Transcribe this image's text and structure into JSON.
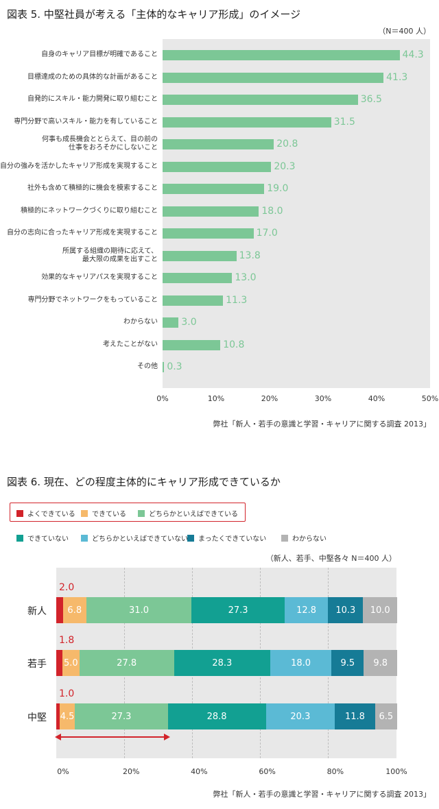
{
  "chart1": {
    "title": "図表 5. 中堅社員が考える「主体的なキャリア形成」のイメージ",
    "n_note": "（N＝400 人）",
    "source": "弊社「新人・若手の意識と学習・キャリアに関する調査 2013」",
    "x_ticks": [
      "0%",
      "10%",
      "20%",
      "30%",
      "40%",
      "50%"
    ]
  },
  "chart2": {
    "title": "図表 6. 現在、どの程度主体的にキャリア形成できているか",
    "n_note": "（新人、若手、中堅各々 N＝400 人）",
    "source": "弊社「新人・若手の意識と学習・キャリアに関する調査 2013」",
    "x_ticks": [
      "0%",
      "20%",
      "40%",
      "60%",
      "80%",
      "100%"
    ],
    "legend_row1": [
      "よくできている",
      "できている",
      "どちらかといえばできている"
    ],
    "legend_row2": [
      "できていない",
      "どちらかといえばできていない",
      "まったくできていない",
      "わからない"
    ]
  },
  "chart_data": [
    {
      "type": "bar",
      "orientation": "horizontal",
      "title": "図表 5. 中堅社員が考える「主体的なキャリア形成」のイメージ",
      "categories": [
        "自身のキャリア目標が明確であること",
        "目標達成のための具体的な計画があること",
        "自発的にスキル・能力開発に取り組むこと",
        "専門分野で高いスキル・能力を有していること",
        "何事も成長機会ととらえて、目の前の\n仕事をおろそかにしないこと",
        "自分の強みを活かしたキャリア形成を実現すること",
        "社外も含めて積極的に機会を模索すること",
        "積極的にネットワークづくりに取り組むこと",
        "自分の志向に合ったキャリア形成を実現すること",
        "所属する組織の期待に応えて、\n最大限の成果を出すこと",
        "効果的なキャリアパスを実現すること",
        "専門分野でネットワークをもっていること",
        "わからない",
        "考えたことがない",
        "その他"
      ],
      "values": [
        44.3,
        41.3,
        36.5,
        31.5,
        20.8,
        20.3,
        19.0,
        18.0,
        17.0,
        13.8,
        13.0,
        11.3,
        3.0,
        10.8,
        0.3
      ],
      "value_labels": [
        "44.3",
        "41.3",
        "36.5",
        "31.5",
        "20.8",
        "20.3",
        "19.0",
        "18.0",
        "17.0",
        "13.8",
        "13.0",
        "11.3",
        "3.0",
        "10.8",
        "0.3"
      ],
      "xlim": [
        0,
        50
      ],
      "color": "#7cc796",
      "grid": false
    },
    {
      "type": "bar",
      "orientation": "horizontal",
      "stacked": "percent",
      "title": "図表 6. 現在、どの程度主体的にキャリア形成できているか",
      "categories": [
        "新人",
        "若手",
        "中堅"
      ],
      "series": [
        {
          "name": "よくできている",
          "color": "#d2232a",
          "values": [
            2.0,
            1.8,
            1.0
          ],
          "labels": [
            "2.0",
            "1.8",
            "1.0"
          ]
        },
        {
          "name": "できている",
          "color": "#f6b96b",
          "values": [
            6.8,
            5.0,
            4.5
          ],
          "labels": [
            "6.8",
            "5.0",
            "4.5"
          ]
        },
        {
          "name": "どちらかといえばできている",
          "color": "#7cc796",
          "values": [
            31.0,
            27.8,
            27.3
          ],
          "labels": [
            "31.0",
            "27.8",
            "27.3"
          ]
        },
        {
          "name": "できていない",
          "color": "#12a092",
          "values": [
            27.3,
            28.3,
            28.8
          ],
          "labels": [
            "27.3",
            "28.3",
            "28.8"
          ]
        },
        {
          "name": "どちらかといえばできていない",
          "color": "#5bbad5",
          "values": [
            12.8,
            18.0,
            20.3
          ],
          "labels": [
            "12.8",
            "18.0",
            "20.3"
          ]
        },
        {
          "name": "まったくできていない",
          "color": "#167b96",
          "values": [
            10.3,
            9.5,
            11.8
          ],
          "labels": [
            "10.3",
            "9.5",
            "11.8"
          ]
        },
        {
          "name": "わからない",
          "color": "#b3b3b3",
          "values": [
            10.0,
            9.8,
            6.5
          ],
          "labels": [
            "10.0",
            "9.8",
            "6.5"
          ]
        }
      ],
      "xlim": [
        0,
        100
      ],
      "grid": true,
      "legend_position": "top"
    }
  ]
}
